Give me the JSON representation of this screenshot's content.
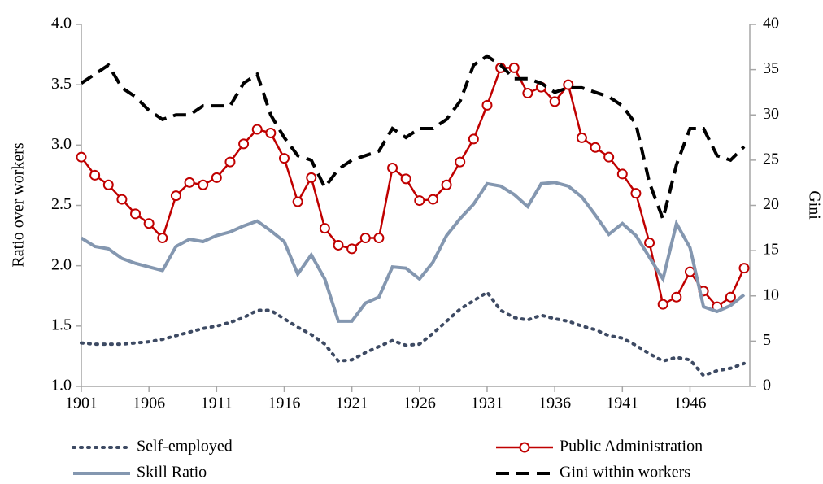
{
  "chart_data": {
    "type": "line",
    "x": [
      1901,
      1902,
      1903,
      1904,
      1905,
      1906,
      1907,
      1908,
      1909,
      1910,
      1911,
      1912,
      1913,
      1914,
      1915,
      1916,
      1917,
      1918,
      1919,
      1920,
      1921,
      1922,
      1923,
      1924,
      1925,
      1926,
      1927,
      1928,
      1929,
      1930,
      1931,
      1932,
      1933,
      1934,
      1935,
      1936,
      1937,
      1938,
      1939,
      1940,
      1941,
      1942,
      1943,
      1944,
      1945,
      1946,
      1947,
      1948,
      1949,
      1950
    ],
    "xlim": [
      1901,
      1950
    ],
    "xticks": [
      1901,
      1906,
      1911,
      1916,
      1921,
      1926,
      1931,
      1936,
      1941,
      1946
    ],
    "ylabel": "Ratio over workers",
    "ylim": [
      1.0,
      4.0
    ],
    "yticks": [
      {
        "value": 1.0,
        "label": "1.0"
      },
      {
        "value": 1.5,
        "label": "1.5"
      },
      {
        "value": 2.0,
        "label": "2.0"
      },
      {
        "value": 2.5,
        "label": "2.5"
      },
      {
        "value": 3.0,
        "label": "3.0"
      },
      {
        "value": 3.5,
        "label": "3.5"
      },
      {
        "value": 4.0,
        "label": "4.0"
      }
    ],
    "y2label": "Gini",
    "y2lim": [
      0,
      40
    ],
    "y2ticks": [
      0,
      5,
      10,
      15,
      20,
      25,
      30,
      35,
      40
    ],
    "grid": false,
    "legend": "bottom",
    "series": [
      {
        "name": "Self-employed",
        "color": "#3d4a63",
        "style": "dotted",
        "values": [
          1.36,
          1.35,
          1.35,
          1.35,
          1.36,
          1.37,
          1.39,
          1.42,
          1.45,
          1.48,
          1.5,
          1.53,
          1.57,
          1.63,
          1.63,
          1.56,
          1.49,
          1.43,
          1.35,
          1.21,
          1.22,
          1.28,
          1.33,
          1.38,
          1.34,
          1.35,
          1.44,
          1.54,
          1.64,
          1.71,
          1.78,
          1.63,
          1.57,
          1.55,
          1.59,
          1.56,
          1.54,
          1.5,
          1.47,
          1.42,
          1.4,
          1.34,
          1.27,
          1.21,
          1.24,
          1.22,
          1.09,
          1.13,
          1.15,
          1.19
        ]
      },
      {
        "name": "Public Administration",
        "color": "#c00000",
        "style": "solid",
        "marker": "circle",
        "values": [
          2.9,
          2.75,
          2.67,
          2.55,
          2.43,
          2.35,
          2.23,
          2.58,
          2.69,
          2.67,
          2.73,
          2.86,
          3.01,
          3.13,
          3.1,
          2.89,
          2.53,
          2.73,
          2.31,
          2.17,
          2.14,
          2.23,
          2.23,
          2.81,
          2.72,
          2.54,
          2.55,
          2.67,
          2.86,
          3.05,
          3.33,
          3.64,
          3.64,
          3.43,
          3.48,
          3.36,
          3.5,
          3.06,
          2.98,
          2.9,
          2.76,
          2.6,
          2.19,
          1.68,
          1.74,
          1.95,
          1.79,
          1.66,
          1.74,
          1.98
        ]
      },
      {
        "name": "Skill Ratio",
        "color": "#8497b0",
        "style": "solid",
        "values": [
          2.23,
          2.16,
          2.14,
          2.06,
          2.02,
          1.99,
          1.96,
          2.16,
          2.22,
          2.2,
          2.25,
          2.28,
          2.33,
          2.37,
          2.29,
          2.2,
          1.93,
          2.09,
          1.89,
          1.54,
          1.54,
          1.69,
          1.74,
          1.99,
          1.98,
          1.89,
          2.03,
          2.25,
          2.39,
          2.51,
          2.68,
          2.66,
          2.59,
          2.49,
          2.68,
          2.69,
          2.66,
          2.57,
          2.42,
          2.26,
          2.35,
          2.25,
          2.07,
          1.89,
          2.35,
          2.15,
          1.66,
          1.62,
          1.67,
          1.76
        ]
      },
      {
        "name": "Gini within workers",
        "color": "#000000",
        "style": "dashed",
        "axis": "y2",
        "values": [
          33.5,
          34.5,
          35.5,
          33,
          32,
          30.5,
          29.5,
          30,
          30,
          31,
          31,
          31,
          33.5,
          34.5,
          30,
          27.5,
          25.5,
          25,
          22,
          24,
          25,
          25.5,
          26,
          28.5,
          27.5,
          28.5,
          28.5,
          29.5,
          31.5,
          35.5,
          36.5,
          35.5,
          34,
          34,
          33.5,
          32.5,
          33,
          33,
          32.5,
          32,
          31,
          29,
          22.5,
          18.5,
          24.5,
          28.5,
          28.5,
          25.5,
          25,
          26.5
        ]
      }
    ]
  }
}
